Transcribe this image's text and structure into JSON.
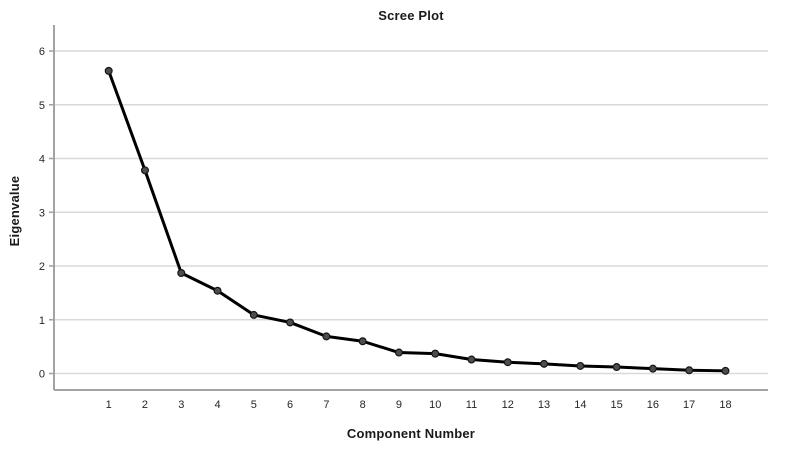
{
  "chart_data": {
    "type": "line",
    "title": "Scree Plot",
    "xlabel": "Component Number",
    "ylabel": "Eigenvalue",
    "categories": [
      1,
      2,
      3,
      4,
      5,
      6,
      7,
      8,
      9,
      10,
      11,
      12,
      13,
      14,
      15,
      16,
      17,
      18
    ],
    "values": [
      5.63,
      3.78,
      1.87,
      1.54,
      1.09,
      0.95,
      0.69,
      0.6,
      0.39,
      0.37,
      0.26,
      0.21,
      0.18,
      0.14,
      0.12,
      0.09,
      0.06,
      0.05
    ],
    "y_ticks": [
      0,
      1,
      2,
      3,
      4,
      5,
      6
    ],
    "ylim": [
      0,
      6
    ],
    "grid": "horizontal-only",
    "legend": "none",
    "marker": "filled-circle",
    "colors": {
      "line": "#000000",
      "marker_fill": "#4d4d4d",
      "marker_stroke": "#151515",
      "gridline": "#d9d9d9",
      "axis": "#a3a3a3",
      "text": "#262626"
    }
  }
}
